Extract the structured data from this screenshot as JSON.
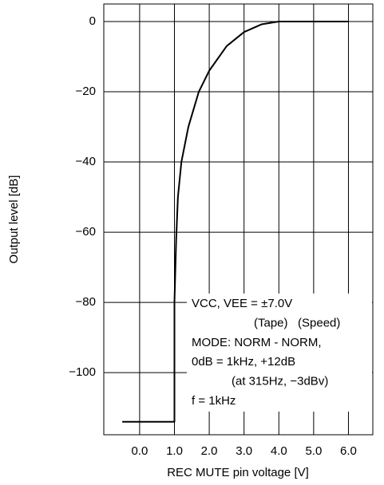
{
  "chart_data": {
    "type": "line",
    "xlabel": "REC MUTE pin voltage [V]",
    "ylabel": "Output level [dB]",
    "x": [
      -0.5,
      1.0,
      1.0,
      1.05,
      1.1,
      1.2,
      1.4,
      1.7,
      2.0,
      2.5,
      3.0,
      3.5,
      4.0,
      5.0,
      6.0
    ],
    "series": [
      {
        "color": "#000000",
        "values": [
          -114,
          -114,
          -80,
          -62,
          -50,
          -40,
          -30,
          -20,
          -14,
          -7,
          -3,
          -0.8,
          0,
          0,
          0
        ]
      }
    ],
    "xlim": [
      -1.03,
      6.7
    ],
    "xticks": [
      {
        "value": 0,
        "label": "0.0"
      },
      {
        "value": 1,
        "label": "1.0"
      },
      {
        "value": 2,
        "label": "2.0"
      },
      {
        "value": 3,
        "label": "3.0"
      },
      {
        "value": 4,
        "label": "4.0"
      },
      {
        "value": 5,
        "label": "5.0"
      },
      {
        "value": 6,
        "label": "6.0"
      }
    ],
    "ylim": [
      -117.7,
      5
    ],
    "yticks": [
      0,
      {
        "value": -20,
        "label": "−20"
      },
      {
        "value": -40,
        "label": "−40"
      },
      {
        "value": -60,
        "label": "−60"
      },
      {
        "value": -80,
        "label": "−80"
      },
      {
        "value": -100,
        "label": "−100"
      }
    ],
    "grid": true,
    "annotations": [
      "VCC, VEE = ±7.0V",
      "(Tape)   (Speed)",
      "MODE: NORM - NORM,",
      "0dB = 1kHz, +12dB",
      "(at 315Hz, −3dBv)",
      "f = 1kHz"
    ]
  }
}
